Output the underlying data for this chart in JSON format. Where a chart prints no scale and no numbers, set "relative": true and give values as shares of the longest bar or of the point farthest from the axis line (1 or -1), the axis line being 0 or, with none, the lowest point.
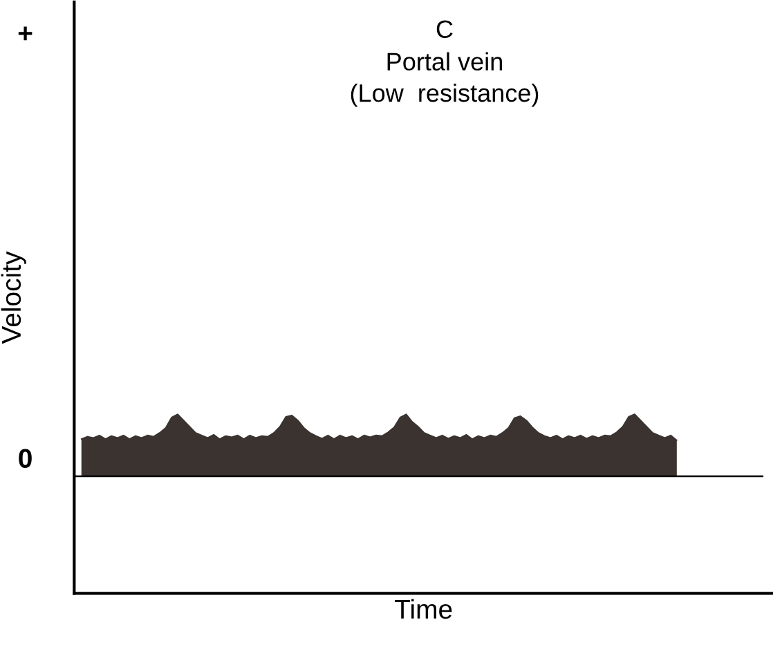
{
  "chart_data": {
    "type": "area",
    "relative": true,
    "title": "C",
    "subtitle": "Portal vein\n(Low  resistance)",
    "xlabel": "Time",
    "ylabel": "Velocity",
    "annotations": [
      "+",
      "0"
    ],
    "color": "#3a3330",
    "categories": [
      null,
      null,
      null,
      null,
      null,
      null,
      null,
      null,
      null,
      null,
      null,
      null,
      null,
      null,
      null,
      null,
      null,
      null,
      null,
      null,
      null,
      null,
      null,
      null,
      null,
      null,
      null,
      null,
      null,
      null,
      null,
      null,
      null,
      null,
      null,
      null,
      null,
      null,
      null,
      null,
      null,
      null,
      null,
      null,
      null,
      null,
      null,
      null,
      null,
      null,
      null,
      null,
      null,
      null,
      null,
      null,
      null,
      null,
      null,
      null,
      null,
      null,
      null,
      null,
      null,
      null,
      null,
      null,
      null,
      null,
      null,
      null,
      null,
      null,
      null,
      null,
      null,
      null,
      null,
      null,
      null,
      null,
      null,
      null,
      null,
      null,
      null,
      null,
      null,
      null,
      null,
      null,
      null,
      null,
      null,
      null,
      null,
      null,
      null,
      null,
      null,
      null,
      null,
      null,
      null,
      null,
      null,
      null,
      null,
      null
    ],
    "values": [
      0.6,
      0.64,
      0.62,
      0.66,
      0.6,
      0.65,
      0.62,
      0.66,
      0.6,
      0.65,
      0.62,
      0.66,
      0.64,
      0.7,
      0.78,
      0.95,
      1.0,
      0.9,
      0.8,
      0.7,
      0.66,
      0.62,
      0.67,
      0.6,
      0.65,
      0.63,
      0.66,
      0.6,
      0.66,
      0.62,
      0.65,
      0.64,
      0.7,
      0.8,
      0.96,
      0.98,
      0.9,
      0.78,
      0.7,
      0.65,
      0.61,
      0.66,
      0.6,
      0.66,
      0.62,
      0.65,
      0.6,
      0.66,
      0.63,
      0.66,
      0.65,
      0.71,
      0.79,
      0.95,
      1.0,
      0.88,
      0.8,
      0.7,
      0.66,
      0.62,
      0.66,
      0.61,
      0.65,
      0.62,
      0.67,
      0.6,
      0.65,
      0.62,
      0.66,
      0.64,
      0.7,
      0.78,
      0.94,
      0.97,
      0.9,
      0.79,
      0.7,
      0.65,
      0.62,
      0.66,
      0.6,
      0.65,
      0.62,
      0.66,
      0.61,
      0.65,
      0.62,
      0.66,
      0.65,
      0.71,
      0.8,
      0.96,
      1.0,
      0.9,
      0.8,
      0.7,
      0.66,
      0.62,
      0.66,
      0.58,
      null,
      null,
      null,
      null,
      null,
      null,
      null,
      null,
      null,
      null
    ]
  }
}
